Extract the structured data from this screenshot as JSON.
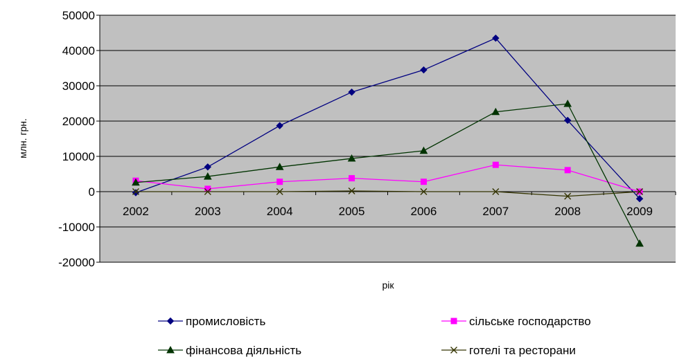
{
  "chart_data": {
    "type": "line",
    "title": "",
    "xlabel": "рік",
    "ylabel": "млн. грн.",
    "categories": [
      "2002",
      "2003",
      "2004",
      "2005",
      "2006",
      "2007",
      "2008",
      "2009"
    ],
    "ylim": [
      -20000,
      50000
    ],
    "yticks": [
      "-20000",
      "-10000",
      "0",
      "10000",
      "20000",
      "30000",
      "40000",
      "50000"
    ],
    "grid": true,
    "plot_background": "#c0c0c0",
    "legend_position": "bottom",
    "series": [
      {
        "name": "промисловість",
        "color": "#000080",
        "marker": "diamond",
        "values": [
          -300,
          7000,
          18700,
          28200,
          34500,
          43500,
          20200,
          -2000
        ]
      },
      {
        "name": "сільське господарство",
        "color": "#ff00ff",
        "marker": "square",
        "values": [
          3100,
          800,
          2800,
          3800,
          2800,
          7600,
          6100,
          0
        ]
      },
      {
        "name": "фінансова діяльність",
        "color": "#003300",
        "marker": "triangle",
        "values": [
          2600,
          4300,
          7000,
          9400,
          11600,
          22600,
          24900,
          -14700
        ]
      },
      {
        "name": "готелі та ресторани",
        "color": "#333300",
        "marker": "x",
        "values": [
          0,
          0,
          0,
          200,
          0,
          0,
          -1300,
          0
        ]
      }
    ]
  }
}
